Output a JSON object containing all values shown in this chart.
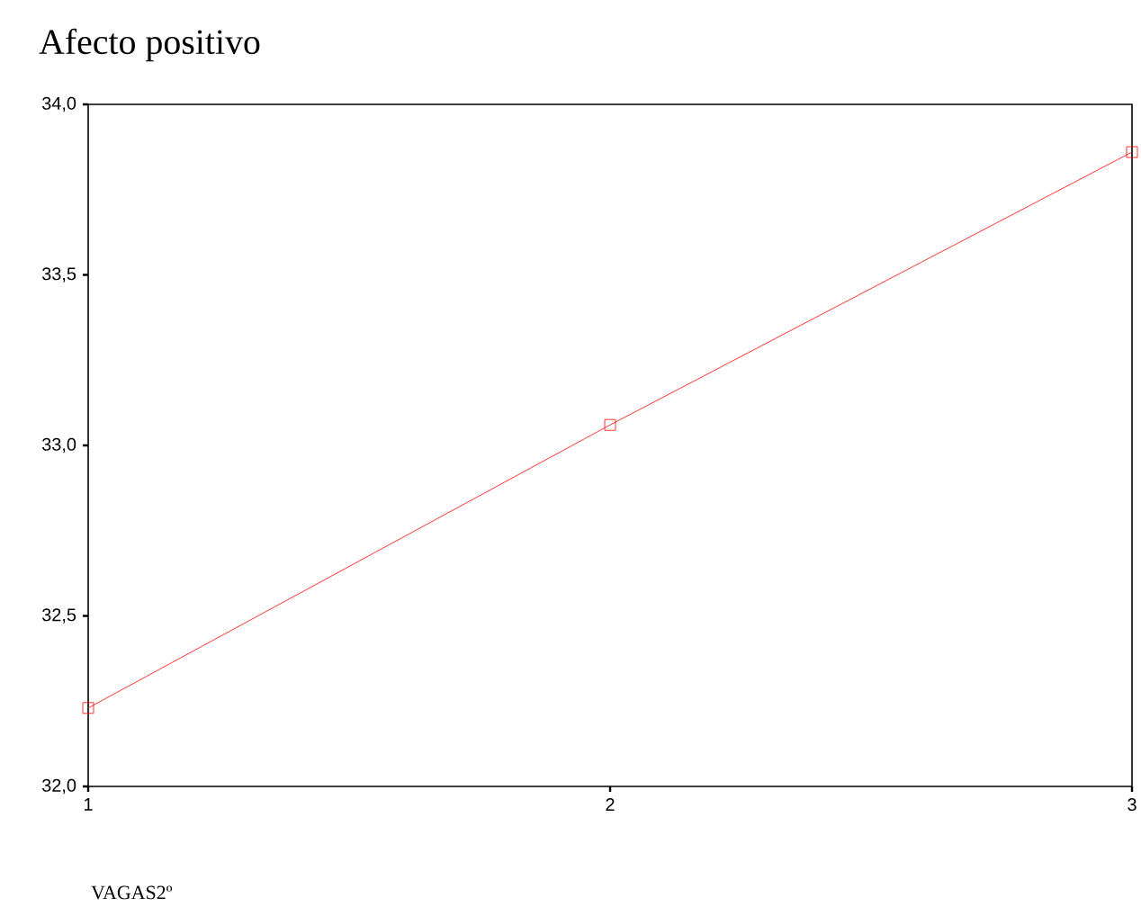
{
  "chart_data": {
    "type": "line",
    "title": "Afecto positivo",
    "xlabel": "VAGAS2º",
    "x": [
      1,
      2,
      3
    ],
    "series": [
      {
        "color": "#ff0000",
        "values": [
          32.23,
          33.06,
          33.86
        ]
      }
    ],
    "xlim": [
      1,
      3
    ],
    "xticks": [
      1,
      2,
      3
    ],
    "ylim": [
      32.0,
      34.0
    ],
    "yticks": [
      {
        "value": 32.0,
        "label": "32,0"
      },
      {
        "value": 32.5,
        "label": "32,5"
      },
      {
        "value": 33.0,
        "label": "33,0"
      },
      {
        "value": 33.5,
        "label": "33,5"
      },
      {
        "value": 34.0,
        "label": "34,0"
      }
    ],
    "marker": "square",
    "line_style": "solid",
    "grid": false
  }
}
